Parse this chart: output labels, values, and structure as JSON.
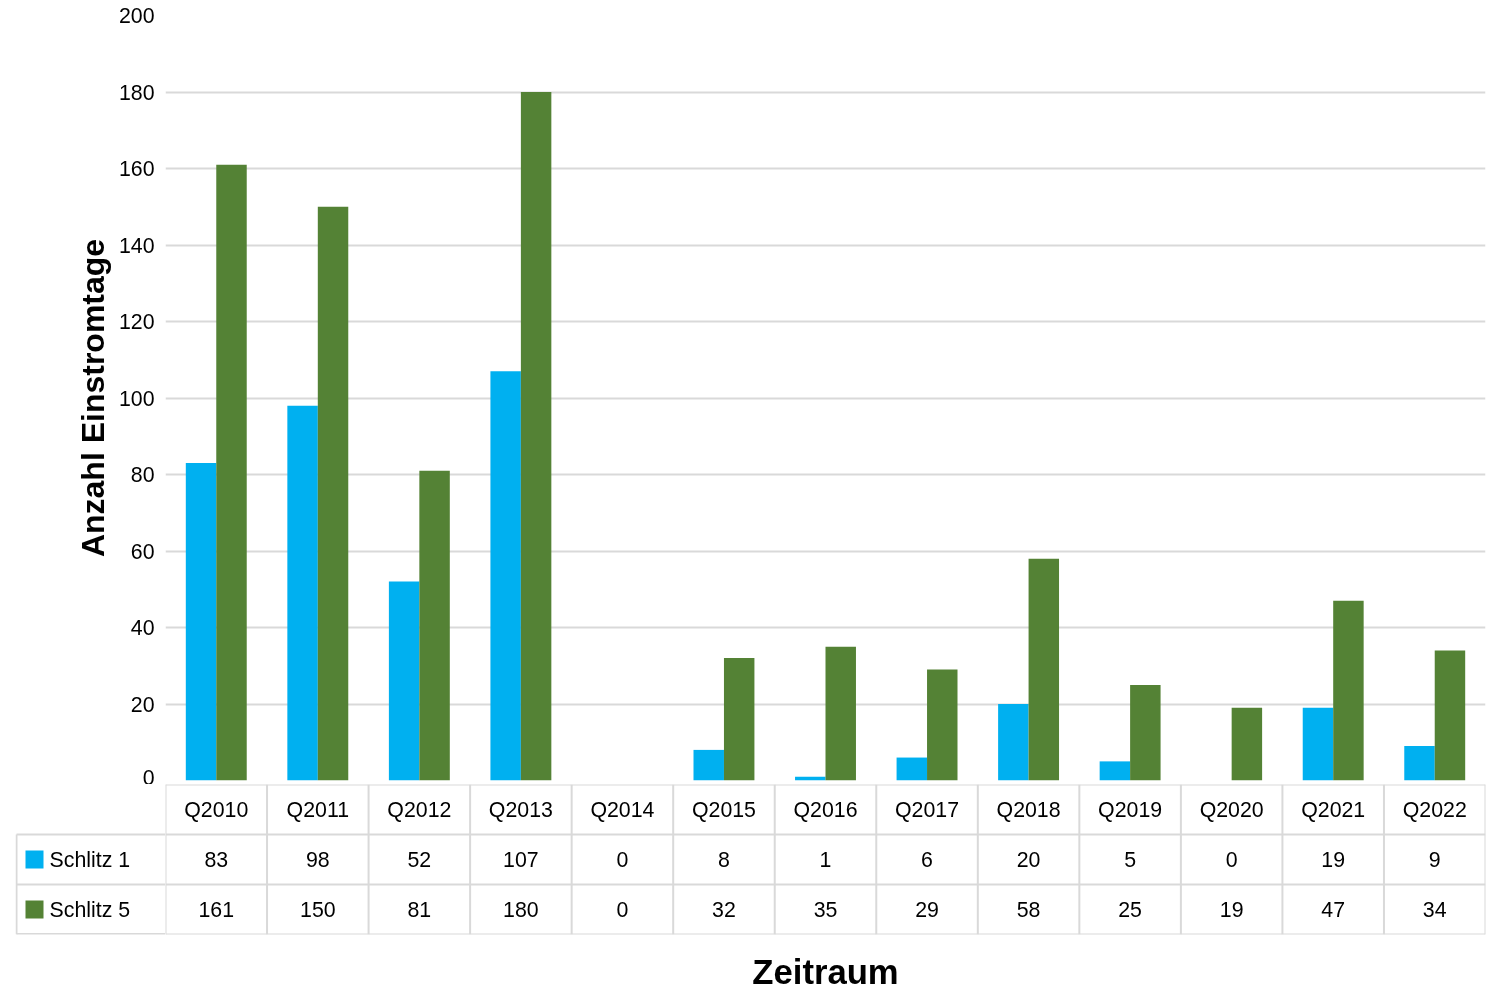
{
  "chart_data": {
    "type": "bar",
    "xlabel": "Zeitraum",
    "ylabel": "Anzahl Einstromtage",
    "categories": [
      "Q2010",
      "Q2011",
      "Q2012",
      "Q2013",
      "Q2014",
      "Q2015",
      "Q2016",
      "Q2017",
      "Q2018",
      "Q2019",
      "Q2020",
      "Q2021",
      "Q2022"
    ],
    "series": [
      {
        "name": "Schlitz 1",
        "color": "#00b0f0",
        "values": [
          83,
          98,
          52,
          107,
          0,
          8,
          1,
          6,
          20,
          5,
          0,
          19,
          9
        ]
      },
      {
        "name": "Schlitz 5",
        "color": "#548235",
        "values": [
          161,
          150,
          81,
          180,
          0,
          32,
          35,
          29,
          58,
          25,
          19,
          47,
          34
        ]
      }
    ],
    "ylim": [
      0,
      200
    ],
    "yticks": [
      0,
      20,
      40,
      60,
      80,
      100,
      120,
      140,
      160,
      180,
      200
    ],
    "grid": "y",
    "legend": "bottom",
    "data_labels": true
  }
}
